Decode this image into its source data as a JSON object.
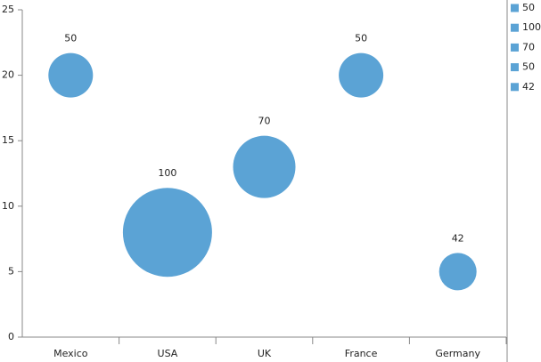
{
  "chart_data": {
    "type": "bubble",
    "categories": [
      "Mexico",
      "USA",
      "UK",
      "France",
      "Germany"
    ],
    "values": [
      20,
      8,
      13,
      20,
      5
    ],
    "sizes": [
      50,
      100,
      70,
      50,
      42
    ],
    "color": "#5ba3d5",
    "ylim": [
      0,
      25
    ],
    "yticks": [
      0,
      5,
      10,
      15,
      20,
      25
    ],
    "grid": false,
    "legend": "right"
  }
}
